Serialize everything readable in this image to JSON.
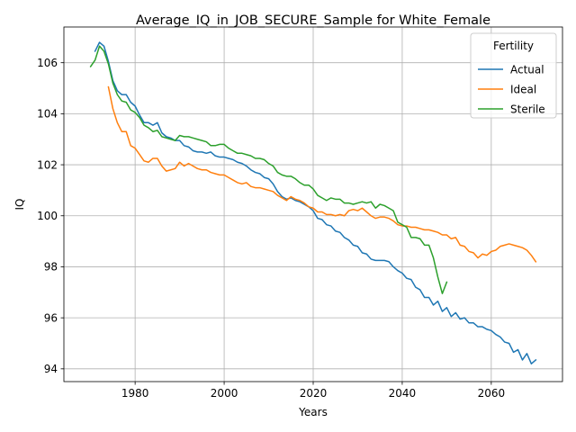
{
  "chart_data": {
    "type": "line",
    "title": "Average_IQ_in_JOB_SECURE_Sample for White_Female",
    "xlabel": "Years",
    "ylabel": "IQ",
    "xlim": [
      1964,
      2076
    ],
    "ylim": [
      93.5,
      107.4
    ],
    "xticks": [
      1980,
      2000,
      2020,
      2040,
      2060
    ],
    "yticks": [
      94,
      96,
      98,
      100,
      102,
      104,
      106
    ],
    "grid": true,
    "legend": {
      "title": "Fertility",
      "position": "top-right"
    },
    "series": [
      {
        "name": "Actual",
        "color": "#1f77b4",
        "points": [
          [
            1971,
            106.45
          ],
          [
            1972,
            106.8
          ],
          [
            1973,
            106.65
          ],
          [
            1974,
            106.05
          ],
          [
            1975,
            105.3
          ],
          [
            1976,
            104.9
          ],
          [
            1977,
            104.75
          ],
          [
            1978,
            104.75
          ],
          [
            1979,
            104.45
          ],
          [
            1980,
            104.3
          ],
          [
            1981,
            103.95
          ],
          [
            1982,
            103.65
          ],
          [
            1983,
            103.65
          ],
          [
            1984,
            103.55
          ],
          [
            1985,
            103.65
          ],
          [
            1986,
            103.25
          ],
          [
            1987,
            103.1
          ],
          [
            1988,
            103.05
          ],
          [
            1989,
            102.95
          ],
          [
            1990,
            102.95
          ],
          [
            1991,
            102.75
          ],
          [
            1992,
            102.7
          ],
          [
            1993,
            102.55
          ],
          [
            1994,
            102.5
          ],
          [
            1995,
            102.5
          ],
          [
            1996,
            102.45
          ],
          [
            1997,
            102.5
          ],
          [
            1998,
            102.35
          ],
          [
            1999,
            102.3
          ],
          [
            2000,
            102.3
          ],
          [
            2001,
            102.25
          ],
          [
            2002,
            102.2
          ],
          [
            2003,
            102.1
          ],
          [
            2004,
            102.05
          ],
          [
            2005,
            101.95
          ],
          [
            2006,
            101.8
          ],
          [
            2007,
            101.7
          ],
          [
            2008,
            101.65
          ],
          [
            2009,
            101.5
          ],
          [
            2010,
            101.45
          ],
          [
            2011,
            101.25
          ],
          [
            2012,
            100.95
          ],
          [
            2013,
            100.75
          ],
          [
            2014,
            100.65
          ],
          [
            2015,
            100.7
          ],
          [
            2016,
            100.6
          ],
          [
            2017,
            100.55
          ],
          [
            2018,
            100.45
          ],
          [
            2019,
            100.35
          ],
          [
            2020,
            100.2
          ],
          [
            2021,
            99.9
          ],
          [
            2022,
            99.85
          ],
          [
            2023,
            99.65
          ],
          [
            2024,
            99.6
          ],
          [
            2025,
            99.4
          ],
          [
            2026,
            99.35
          ],
          [
            2027,
            99.15
          ],
          [
            2028,
            99.05
          ],
          [
            2029,
            98.85
          ],
          [
            2030,
            98.8
          ],
          [
            2031,
            98.55
          ],
          [
            2032,
            98.5
          ],
          [
            2033,
            98.3
          ],
          [
            2034,
            98.25
          ],
          [
            2035,
            98.25
          ],
          [
            2036,
            98.25
          ],
          [
            2037,
            98.2
          ],
          [
            2038,
            98.0
          ],
          [
            2039,
            97.85
          ],
          [
            2040,
            97.75
          ],
          [
            2041,
            97.55
          ],
          [
            2042,
            97.5
          ],
          [
            2043,
            97.2
          ],
          [
            2044,
            97.1
          ],
          [
            2045,
            96.8
          ],
          [
            2046,
            96.8
          ],
          [
            2047,
            96.5
          ],
          [
            2048,
            96.65
          ],
          [
            2049,
            96.25
          ],
          [
            2050,
            96.4
          ],
          [
            2051,
            96.05
          ],
          [
            2052,
            96.2
          ],
          [
            2053,
            95.95
          ],
          [
            2054,
            96.0
          ],
          [
            2055,
            95.8
          ],
          [
            2056,
            95.8
          ],
          [
            2057,
            95.65
          ],
          [
            2058,
            95.65
          ],
          [
            2059,
            95.55
          ],
          [
            2060,
            95.5
          ],
          [
            2061,
            95.35
          ],
          [
            2062,
            95.25
          ],
          [
            2063,
            95.05
          ],
          [
            2064,
            95.0
          ],
          [
            2065,
            94.65
          ],
          [
            2066,
            94.75
          ],
          [
            2067,
            94.35
          ],
          [
            2068,
            94.6
          ],
          [
            2069,
            94.2
          ],
          [
            2070,
            94.35
          ]
        ]
      },
      {
        "name": "Ideal",
        "color": "#ff7f0e",
        "points": [
          [
            1974,
            105.05
          ],
          [
            1975,
            104.2
          ],
          [
            1976,
            103.65
          ],
          [
            1977,
            103.3
          ],
          [
            1978,
            103.3
          ],
          [
            1979,
            102.75
          ],
          [
            1980,
            102.65
          ],
          [
            1981,
            102.4
          ],
          [
            1982,
            102.15
          ],
          [
            1983,
            102.1
          ],
          [
            1984,
            102.25
          ],
          [
            1985,
            102.25
          ],
          [
            1986,
            101.95
          ],
          [
            1987,
            101.75
          ],
          [
            1988,
            101.8
          ],
          [
            1989,
            101.85
          ],
          [
            1990,
            102.1
          ],
          [
            1991,
            101.95
          ],
          [
            1992,
            102.05
          ],
          [
            1993,
            101.95
          ],
          [
            1994,
            101.85
          ],
          [
            1995,
            101.8
          ],
          [
            1996,
            101.8
          ],
          [
            1997,
            101.7
          ],
          [
            1998,
            101.65
          ],
          [
            1999,
            101.6
          ],
          [
            2000,
            101.6
          ],
          [
            2001,
            101.5
          ],
          [
            2002,
            101.4
          ],
          [
            2003,
            101.3
          ],
          [
            2004,
            101.25
          ],
          [
            2005,
            101.3
          ],
          [
            2006,
            101.15
          ],
          [
            2007,
            101.1
          ],
          [
            2008,
            101.1
          ],
          [
            2009,
            101.05
          ],
          [
            2010,
            101.0
          ],
          [
            2011,
            100.95
          ],
          [
            2012,
            100.8
          ],
          [
            2013,
            100.7
          ],
          [
            2014,
            100.6
          ],
          [
            2015,
            100.75
          ],
          [
            2016,
            100.65
          ],
          [
            2017,
            100.6
          ],
          [
            2018,
            100.5
          ],
          [
            2019,
            100.35
          ],
          [
            2020,
            100.3
          ],
          [
            2021,
            100.15
          ],
          [
            2022,
            100.15
          ],
          [
            2023,
            100.05
          ],
          [
            2024,
            100.05
          ],
          [
            2025,
            100.0
          ],
          [
            2026,
            100.05
          ],
          [
            2027,
            100.0
          ],
          [
            2028,
            100.2
          ],
          [
            2029,
            100.25
          ],
          [
            2030,
            100.2
          ],
          [
            2031,
            100.3
          ],
          [
            2032,
            100.15
          ],
          [
            2033,
            100.0
          ],
          [
            2034,
            99.9
          ],
          [
            2035,
            99.95
          ],
          [
            2036,
            99.95
          ],
          [
            2037,
            99.9
          ],
          [
            2038,
            99.8
          ],
          [
            2039,
            99.65
          ],
          [
            2040,
            99.6
          ],
          [
            2041,
            99.6
          ],
          [
            2042,
            99.55
          ],
          [
            2043,
            99.55
          ],
          [
            2044,
            99.5
          ],
          [
            2045,
            99.45
          ],
          [
            2046,
            99.45
          ],
          [
            2047,
            99.4
          ],
          [
            2048,
            99.35
          ],
          [
            2049,
            99.25
          ],
          [
            2050,
            99.25
          ],
          [
            2051,
            99.1
          ],
          [
            2052,
            99.15
          ],
          [
            2053,
            98.85
          ],
          [
            2054,
            98.8
          ],
          [
            2055,
            98.6
          ],
          [
            2056,
            98.55
          ],
          [
            2057,
            98.35
          ],
          [
            2058,
            98.5
          ],
          [
            2059,
            98.45
          ],
          [
            2060,
            98.6
          ],
          [
            2061,
            98.65
          ],
          [
            2062,
            98.8
          ],
          [
            2063,
            98.85
          ],
          [
            2064,
            98.9
          ],
          [
            2065,
            98.85
          ],
          [
            2066,
            98.8
          ],
          [
            2067,
            98.75
          ],
          [
            2068,
            98.65
          ],
          [
            2069,
            98.45
          ],
          [
            2070,
            98.2
          ]
        ]
      },
      {
        "name": "Sterile",
        "color": "#2ca02c",
        "points": [
          [
            1970,
            105.85
          ],
          [
            1971,
            106.1
          ],
          [
            1972,
            106.65
          ],
          [
            1973,
            106.45
          ],
          [
            1974,
            105.95
          ],
          [
            1975,
            105.2
          ],
          [
            1976,
            104.75
          ],
          [
            1977,
            104.5
          ],
          [
            1978,
            104.45
          ],
          [
            1979,
            104.15
          ],
          [
            1980,
            104.05
          ],
          [
            1981,
            103.85
          ],
          [
            1982,
            103.55
          ],
          [
            1983,
            103.45
          ],
          [
            1984,
            103.3
          ],
          [
            1985,
            103.35
          ],
          [
            1986,
            103.1
          ],
          [
            1987,
            103.05
          ],
          [
            1988,
            103.0
          ],
          [
            1989,
            102.95
          ],
          [
            1990,
            103.15
          ],
          [
            1991,
            103.1
          ],
          [
            1992,
            103.1
          ],
          [
            1993,
            103.05
          ],
          [
            1994,
            103.0
          ],
          [
            1995,
            102.95
          ],
          [
            1996,
            102.9
          ],
          [
            1997,
            102.75
          ],
          [
            1998,
            102.75
          ],
          [
            1999,
            102.8
          ],
          [
            2000,
            102.8
          ],
          [
            2001,
            102.65
          ],
          [
            2002,
            102.55
          ],
          [
            2003,
            102.45
          ],
          [
            2004,
            102.45
          ],
          [
            2005,
            102.4
          ],
          [
            2006,
            102.35
          ],
          [
            2007,
            102.25
          ],
          [
            2008,
            102.25
          ],
          [
            2009,
            102.2
          ],
          [
            2010,
            102.05
          ],
          [
            2011,
            101.95
          ],
          [
            2012,
            101.7
          ],
          [
            2013,
            101.6
          ],
          [
            2014,
            101.55
          ],
          [
            2015,
            101.55
          ],
          [
            2016,
            101.45
          ],
          [
            2017,
            101.3
          ],
          [
            2018,
            101.2
          ],
          [
            2019,
            101.2
          ],
          [
            2020,
            101.05
          ],
          [
            2021,
            100.8
          ],
          [
            2022,
            100.7
          ],
          [
            2023,
            100.6
          ],
          [
            2024,
            100.7
          ],
          [
            2025,
            100.65
          ],
          [
            2026,
            100.65
          ],
          [
            2027,
            100.5
          ],
          [
            2028,
            100.5
          ],
          [
            2029,
            100.45
          ],
          [
            2030,
            100.5
          ],
          [
            2031,
            100.55
          ],
          [
            2032,
            100.5
          ],
          [
            2033,
            100.55
          ],
          [
            2034,
            100.3
          ],
          [
            2035,
            100.45
          ],
          [
            2036,
            100.4
          ],
          [
            2037,
            100.3
          ],
          [
            2038,
            100.2
          ],
          [
            2039,
            99.75
          ],
          [
            2040,
            99.65
          ],
          [
            2041,
            99.55
          ],
          [
            2042,
            99.15
          ],
          [
            2043,
            99.15
          ],
          [
            2044,
            99.1
          ],
          [
            2045,
            98.85
          ],
          [
            2046,
            98.85
          ],
          [
            2047,
            98.35
          ],
          [
            2048,
            97.6
          ],
          [
            2049,
            96.95
          ],
          [
            2050,
            97.4
          ]
        ]
      }
    ]
  }
}
